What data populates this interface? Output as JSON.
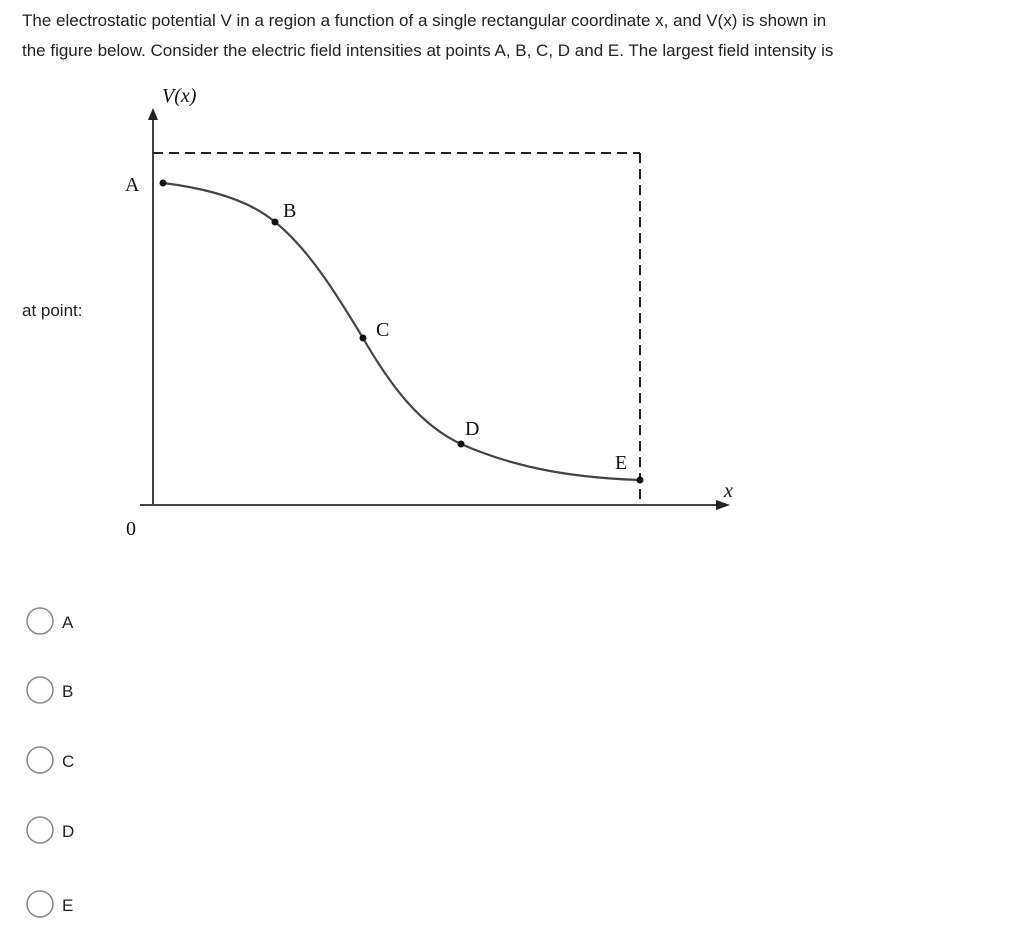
{
  "question": {
    "lines": [
      "The electrostatic potential V in a region a function of a single rectangular coordinate x, and V(x) is shown in",
      "the figure below. Consider the electric field intensities at points A, B, C, D and E. The largest field intensity is"
    ],
    "continuation": "at point:"
  },
  "figure": {
    "y_axis_label": "V(x)",
    "x_axis_label": "x",
    "origin_label": "0",
    "points": [
      "A",
      "B",
      "C",
      "D",
      "E"
    ]
  },
  "options": [
    "A",
    "B",
    "C",
    "D",
    "E"
  ]
}
